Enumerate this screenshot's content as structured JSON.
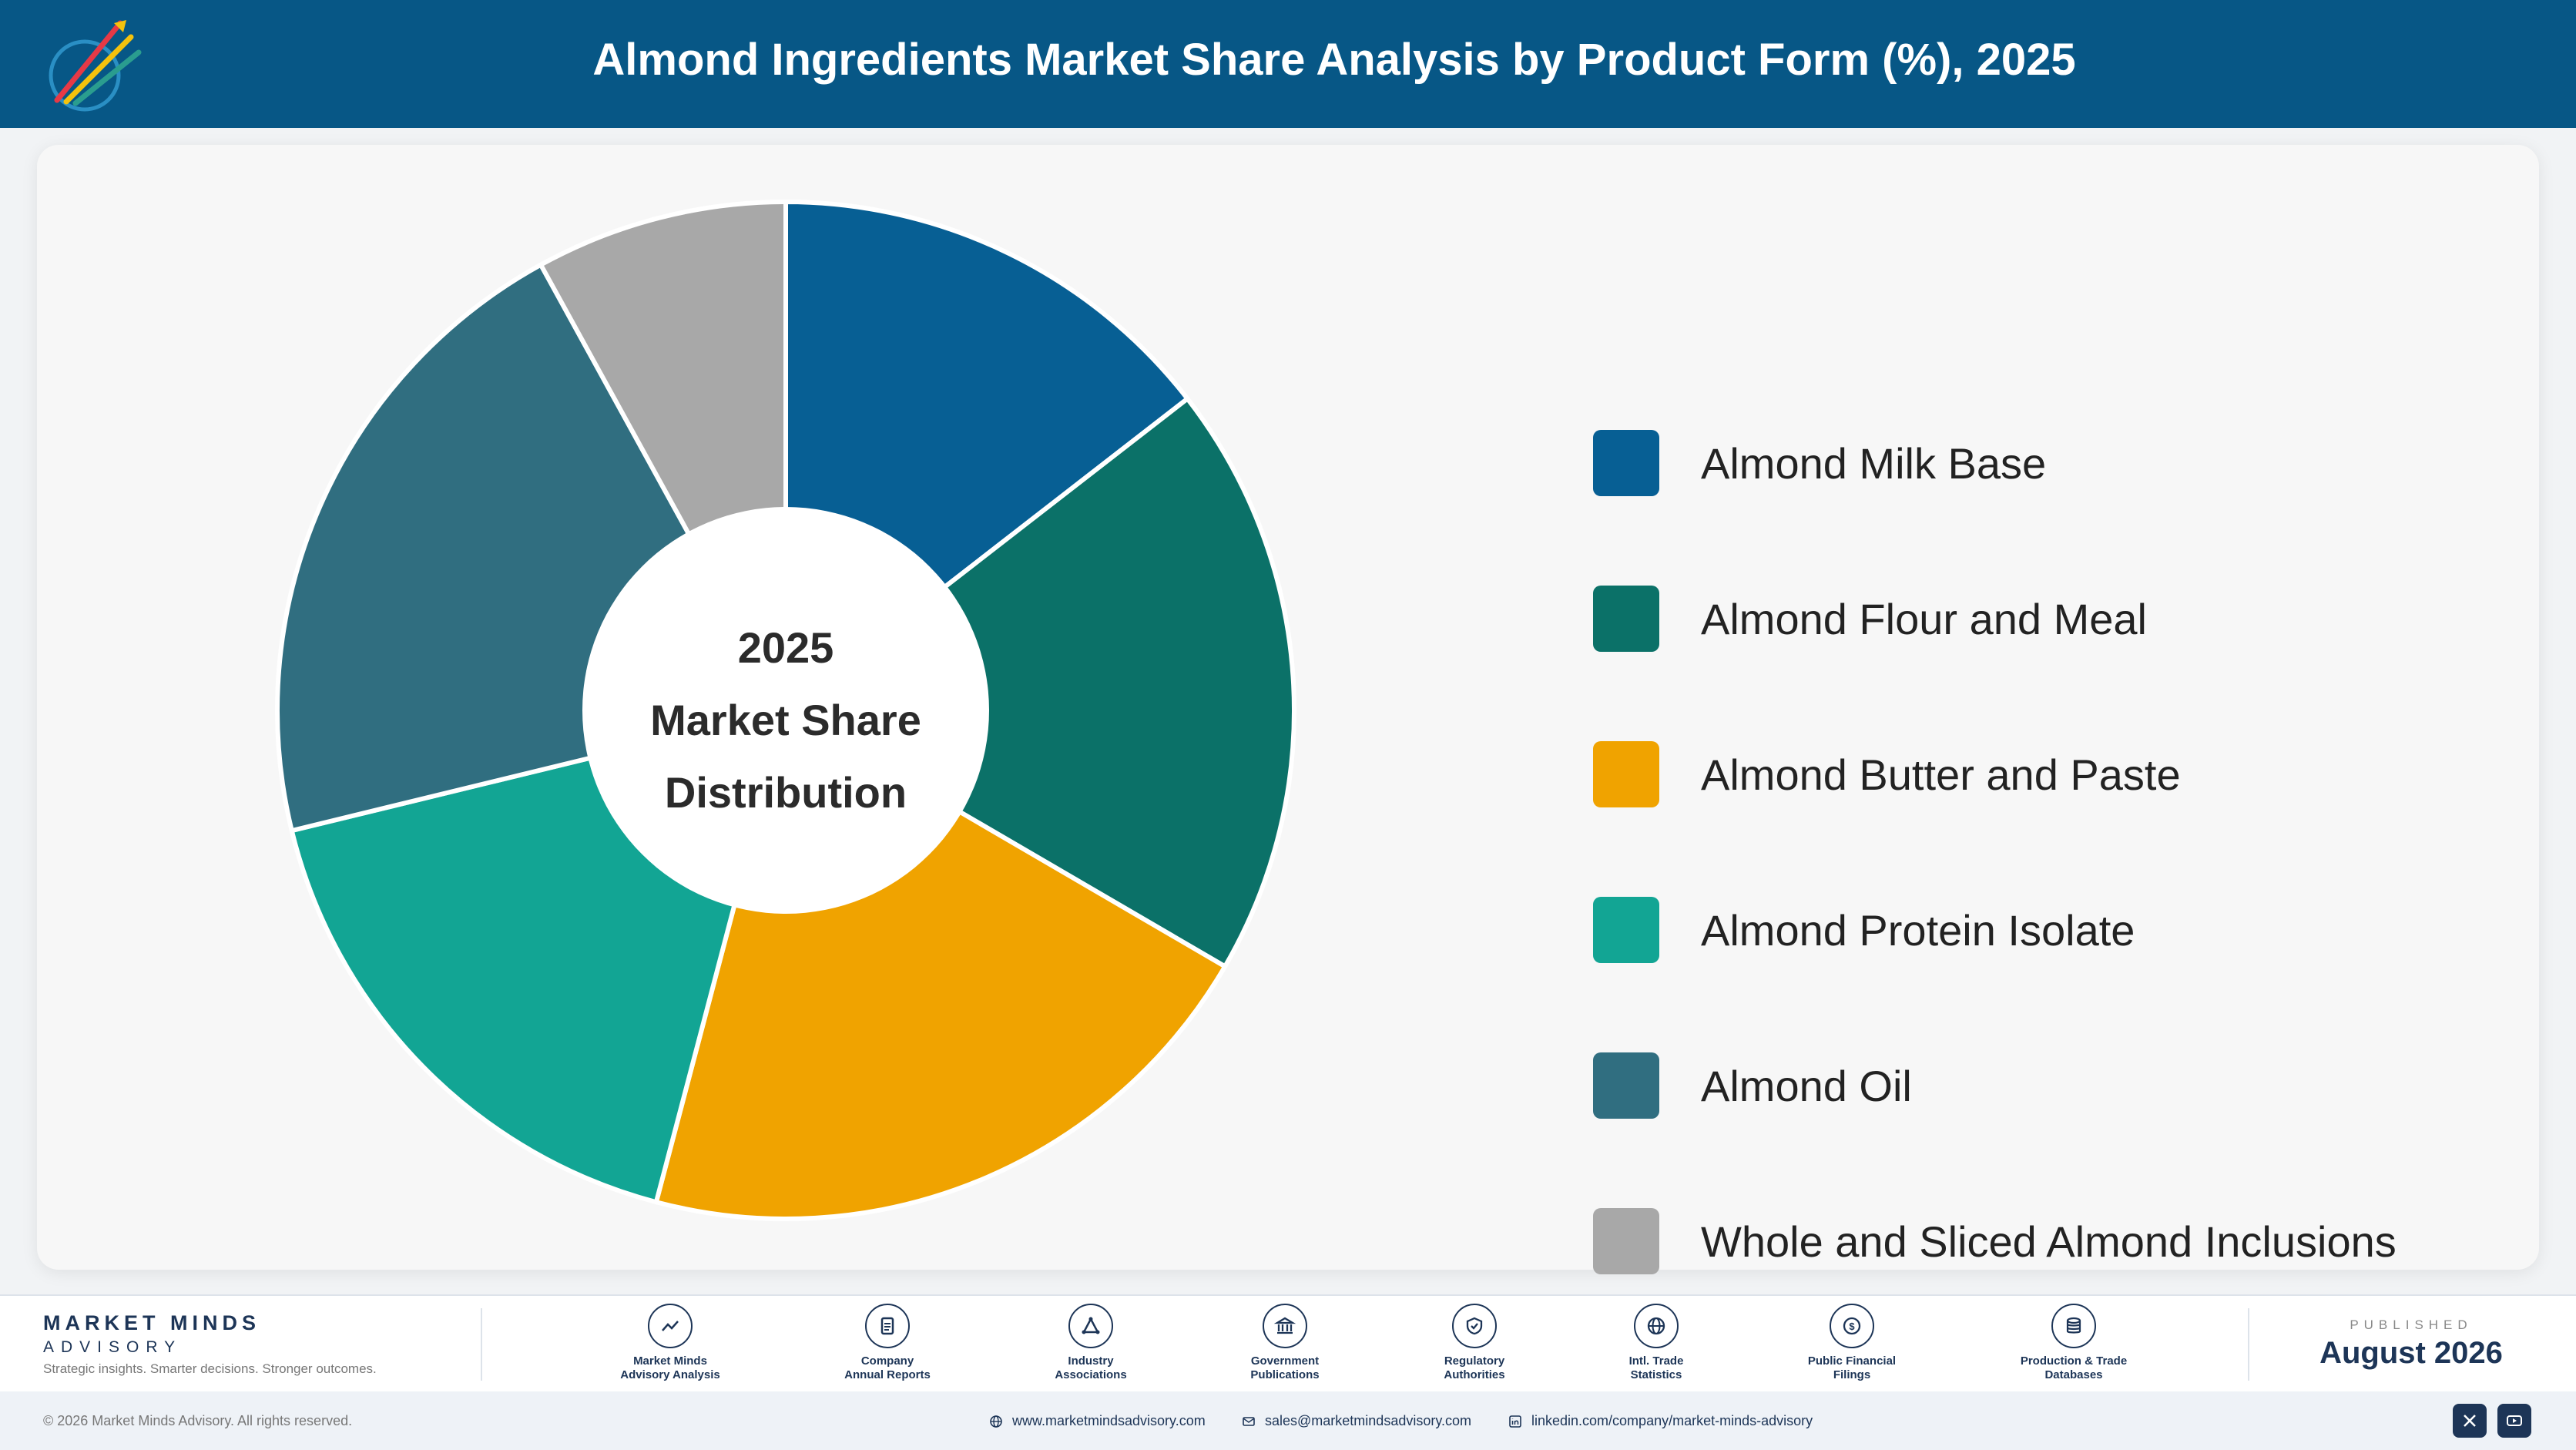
{
  "header": {
    "title": "Almond Ingredients Market Share Analysis by Product Form (%), 2025"
  },
  "chart_data": {
    "type": "pie",
    "donut": true,
    "center_label": [
      "2025",
      "Market Share",
      "Distribution"
    ],
    "categories": [
      "Almond Milk Base",
      "Almond Flour and Meal",
      "Almond Butter and Paste",
      "Almond Protein Isolate",
      "Almond Oil",
      "Whole and Sliced Almond Inclusions"
    ],
    "values": [
      14.5,
      18.9,
      20.7,
      17.1,
      20.8,
      8.0
    ],
    "colors": [
      "#075f94",
      "#0b7168",
      "#f0a300",
      "#12a594",
      "#306e80",
      "#a8a8a8"
    ],
    "legend_position": "right"
  },
  "footer": {
    "brand_name": "MARKET MINDS",
    "brand_sub": "ADVISORY",
    "tagline": "Strategic insights. Smarter decisions. Stronger outcomes.",
    "sources": [
      {
        "icon": "trend-icon",
        "line1": "Market Minds",
        "line2": "Advisory Analysis"
      },
      {
        "icon": "document-icon",
        "line1": "Company",
        "line2": "Annual Reports"
      },
      {
        "icon": "network-icon",
        "line1": "Industry",
        "line2": "Associations"
      },
      {
        "icon": "building-icon",
        "line1": "Government",
        "line2": "Publications"
      },
      {
        "icon": "shield-icon",
        "line1": "Regulatory",
        "line2": "Authorities"
      },
      {
        "icon": "globe-icon",
        "line1": "Intl. Trade",
        "line2": "Statistics"
      },
      {
        "icon": "coin-icon",
        "line1": "Public Financial",
        "line2": "Filings"
      },
      {
        "icon": "database-icon",
        "line1": "Production & Trade",
        "line2": "Databases"
      }
    ],
    "published_label": "PUBLISHED",
    "published_date": "August 2026"
  },
  "bottom": {
    "copyright": "© 2026 Market Minds Advisory. All rights reserved.",
    "website": "www.marketmindsadvisory.com",
    "email": "sales@marketmindsadvisory.com",
    "linkedin": "linkedin.com/company/market-minds-advisory"
  }
}
